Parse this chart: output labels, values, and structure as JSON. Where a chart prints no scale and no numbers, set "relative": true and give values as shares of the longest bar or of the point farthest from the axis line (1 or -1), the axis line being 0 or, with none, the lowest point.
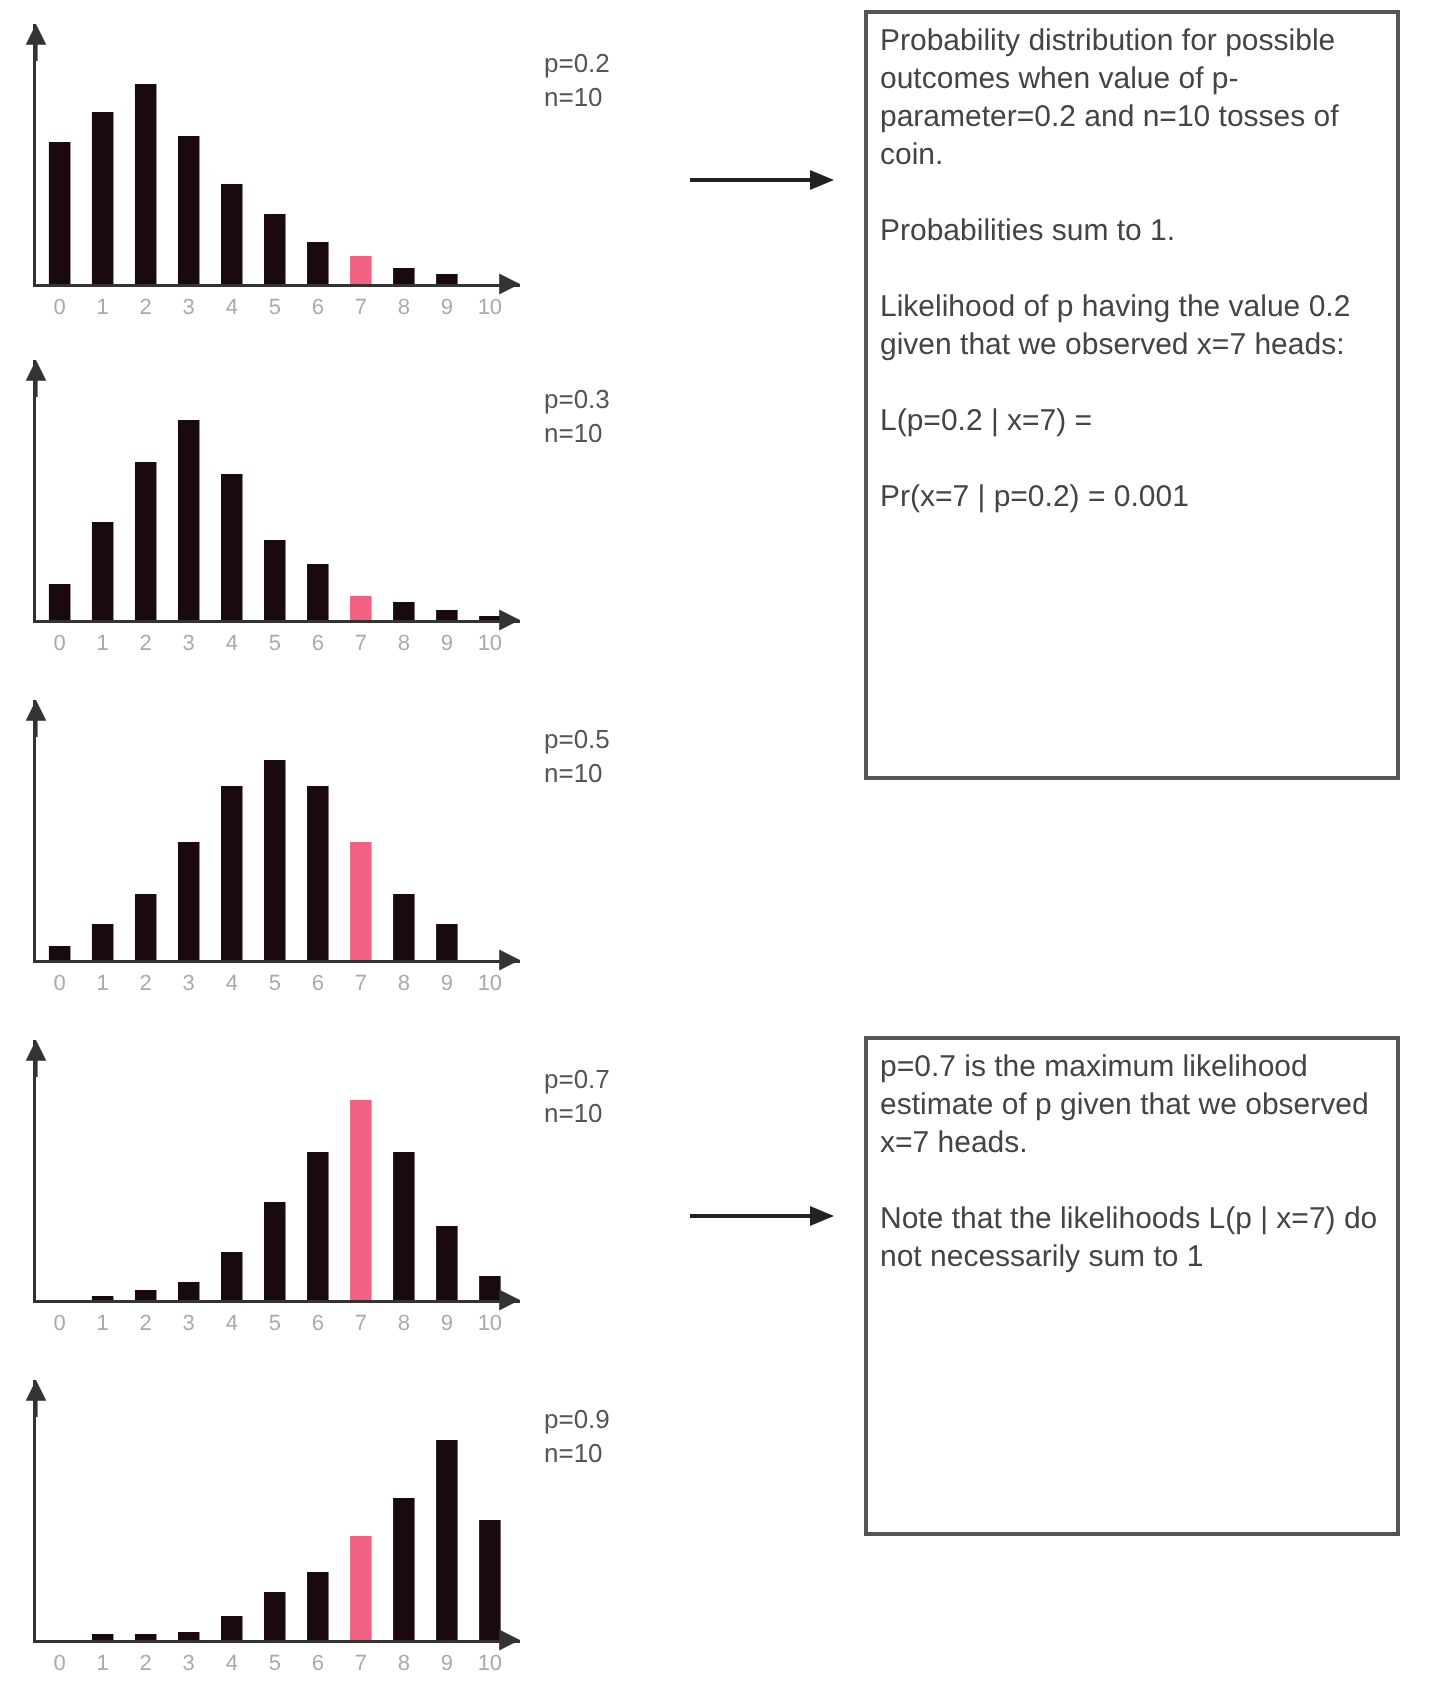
{
  "chart_data": [
    {
      "type": "bar",
      "relative": true,
      "categories": [
        "0",
        "1",
        "2",
        "3",
        "4",
        "5",
        "6",
        "7",
        "8",
        "9",
        "10"
      ],
      "values": [
        0.71,
        0.86,
        1,
        0.74,
        0.5,
        0.35,
        0.21,
        0.14,
        0.08,
        0.05,
        0
      ],
      "colors": [
        "#1a0a0e",
        "#1a0a0e",
        "#1a0a0e",
        "#1a0a0e",
        "#1a0a0e",
        "#1a0a0e",
        "#1a0a0e",
        "#f06080",
        "#1a0a0e",
        "#1a0a0e",
        "#1a0a0e"
      ],
      "annotations": [
        "p=0.2",
        "n=10"
      ]
    },
    {
      "type": "bar",
      "relative": true,
      "categories": [
        "0",
        "1",
        "2",
        "3",
        "4",
        "5",
        "6",
        "7",
        "8",
        "9",
        "10"
      ],
      "values": [
        0.18,
        0.49,
        0.79,
        1,
        0.73,
        0.4,
        0.28,
        0.12,
        0.09,
        0.05,
        0.02
      ],
      "colors": [
        "#1a0a0e",
        "#1a0a0e",
        "#1a0a0e",
        "#1a0a0e",
        "#1a0a0e",
        "#1a0a0e",
        "#1a0a0e",
        "#f06080",
        "#1a0a0e",
        "#1a0a0e",
        "#1a0a0e"
      ],
      "annotations": [
        "p=0.3",
        "n=10"
      ]
    },
    {
      "type": "bar",
      "relative": true,
      "categories": [
        "0",
        "1",
        "2",
        "3",
        "4",
        "5",
        "6",
        "7",
        "8",
        "9",
        "10"
      ],
      "values": [
        0.07,
        0.18,
        0.33,
        0.59,
        0.87,
        1,
        0.87,
        0.59,
        0.33,
        0.18,
        0
      ],
      "colors": [
        "#1a0a0e",
        "#1a0a0e",
        "#1a0a0e",
        "#1a0a0e",
        "#1a0a0e",
        "#1a0a0e",
        "#1a0a0e",
        "#f06080",
        "#1a0a0e",
        "#1a0a0e",
        "#1a0a0e"
      ],
      "annotations": [
        "p=0.5",
        "n=10"
      ]
    },
    {
      "type": "bar",
      "relative": true,
      "categories": [
        "0",
        "1",
        "2",
        "3",
        "4",
        "5",
        "6",
        "7",
        "8",
        "9",
        "10"
      ],
      "values": [
        0,
        0.02,
        0.05,
        0.09,
        0.24,
        0.49,
        0.74,
        1,
        0.74,
        0.37,
        0.12
      ],
      "colors": [
        "#1a0a0e",
        "#1a0a0e",
        "#1a0a0e",
        "#1a0a0e",
        "#1a0a0e",
        "#1a0a0e",
        "#1a0a0e",
        "#f06080",
        "#1a0a0e",
        "#1a0a0e",
        "#1a0a0e"
      ],
      "annotations": [
        "p=0.7",
        "n=10"
      ]
    },
    {
      "type": "bar",
      "relative": true,
      "categories": [
        "0",
        "1",
        "2",
        "3",
        "4",
        "5",
        "6",
        "7",
        "8",
        "9",
        "10"
      ],
      "values": [
        0,
        0.03,
        0.03,
        0.04,
        0.12,
        0.24,
        0.34,
        0.52,
        0.71,
        1,
        0.6
      ],
      "colors": [
        "#1a0a0e",
        "#1a0a0e",
        "#1a0a0e",
        "#1a0a0e",
        "#1a0a0e",
        "#1a0a0e",
        "#1a0a0e",
        "#f06080",
        "#1a0a0e",
        "#1a0a0e",
        "#1a0a0e"
      ],
      "annotations": [
        "p=0.9",
        "n=10"
      ]
    },
    {
      "type": "other",
      "annotations": [
        "Probability distribution for possible outcomes when value of p-parameter=0.2 and n=10 tosses of coin.",
        "Probabilities sum to 1.",
        "Likelihood of p having the value 0.2 given that we observed x=7 heads:",
        "L(p=0.2 | x=7)  =",
        "Pr(x=7 | p=0.2) = 0.001"
      ]
    },
    {
      "type": "other",
      "annotations": [
        "p=0.7 is the maximum likelihood estimate of p given that we observed x=7 heads.",
        "Note that the likelihoods L(p | x=7) do not necessarily sum to 1"
      ]
    }
  ]
}
